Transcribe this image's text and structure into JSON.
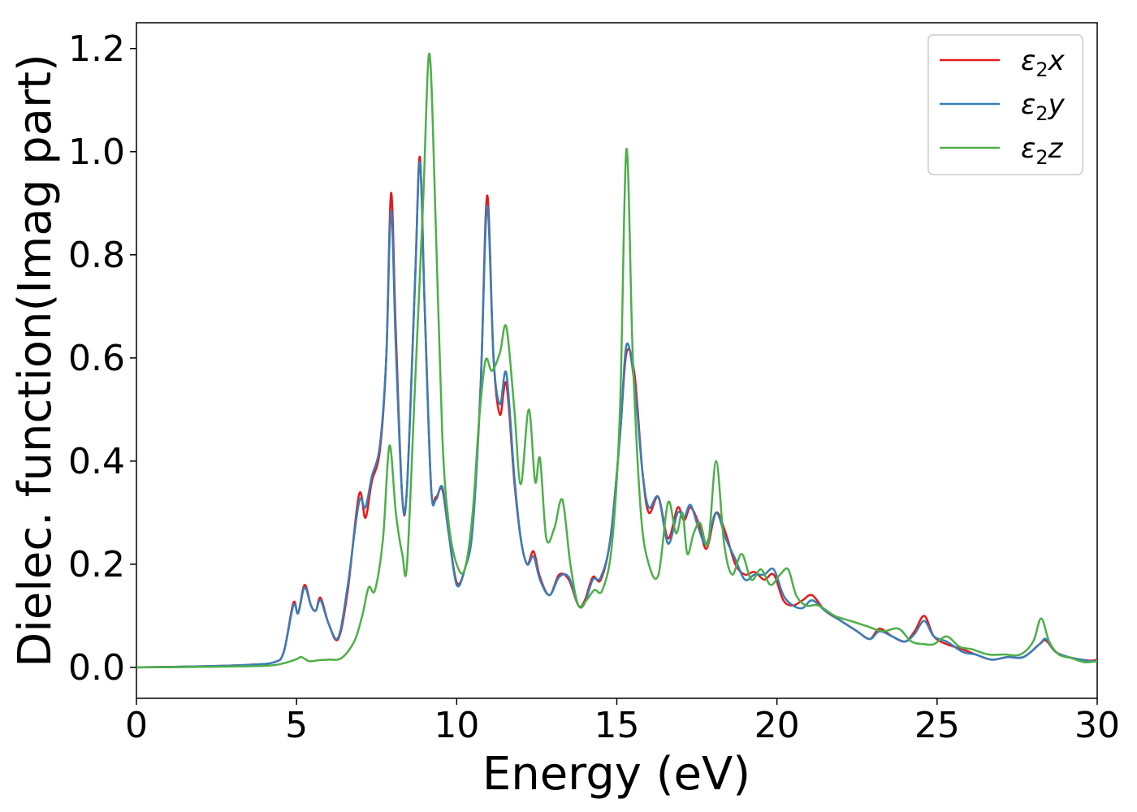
{
  "chart_data": {
    "type": "line",
    "title": "",
    "xlabel": "Energy (eV)",
    "ylabel": "Dielec. function(Imag part)",
    "xlim": [
      0,
      30
    ],
    "ylim": [
      -0.06,
      1.25
    ],
    "xticks": [
      0,
      5,
      10,
      15,
      20,
      25,
      30
    ],
    "xtick_labels": [
      "0",
      "5",
      "10",
      "15",
      "20",
      "25",
      "30"
    ],
    "yticks": [
      0.0,
      0.2,
      0.4,
      0.6,
      0.8,
      1.0,
      1.2
    ],
    "ytick_labels": [
      "0.0",
      "0.2",
      "0.4",
      "0.6",
      "0.8",
      "1.0",
      "1.2"
    ],
    "grid": false,
    "legend_position": "top-right",
    "series": [
      {
        "name": "ε2x",
        "legend_main": "ε",
        "legend_sub": "2",
        "legend_tail": "x",
        "color": "#e41a1c",
        "points": [
          [
            0,
            0
          ],
          [
            2,
            0.002
          ],
          [
            3.5,
            0.005
          ],
          [
            4.3,
            0.01
          ],
          [
            4.6,
            0.03
          ],
          [
            4.9,
            0.125
          ],
          [
            5.05,
            0.105
          ],
          [
            5.25,
            0.16
          ],
          [
            5.45,
            0.12
          ],
          [
            5.6,
            0.11
          ],
          [
            5.75,
            0.135
          ],
          [
            6.0,
            0.085
          ],
          [
            6.3,
            0.055
          ],
          [
            6.6,
            0.15
          ],
          [
            6.95,
            0.335
          ],
          [
            7.15,
            0.29
          ],
          [
            7.35,
            0.36
          ],
          [
            7.6,
            0.42
          ],
          [
            7.8,
            0.6
          ],
          [
            7.95,
            0.92
          ],
          [
            8.1,
            0.65
          ],
          [
            8.3,
            0.33
          ],
          [
            8.45,
            0.35
          ],
          [
            8.7,
            0.75
          ],
          [
            8.85,
            0.99
          ],
          [
            9.0,
            0.7
          ],
          [
            9.2,
            0.35
          ],
          [
            9.35,
            0.33
          ],
          [
            9.55,
            0.345
          ],
          [
            9.75,
            0.26
          ],
          [
            10.0,
            0.165
          ],
          [
            10.25,
            0.19
          ],
          [
            10.5,
            0.28
          ],
          [
            10.75,
            0.55
          ],
          [
            10.95,
            0.915
          ],
          [
            11.15,
            0.6
          ],
          [
            11.35,
            0.49
          ],
          [
            11.55,
            0.55
          ],
          [
            11.8,
            0.36
          ],
          [
            12.0,
            0.25
          ],
          [
            12.2,
            0.2
          ],
          [
            12.4,
            0.225
          ],
          [
            12.6,
            0.175
          ],
          [
            12.9,
            0.14
          ],
          [
            13.2,
            0.18
          ],
          [
            13.5,
            0.17
          ],
          [
            13.8,
            0.12
          ],
          [
            14.0,
            0.13
          ],
          [
            14.25,
            0.175
          ],
          [
            14.5,
            0.17
          ],
          [
            14.8,
            0.25
          ],
          [
            15.1,
            0.45
          ],
          [
            15.3,
            0.61
          ],
          [
            15.55,
            0.57
          ],
          [
            15.8,
            0.38
          ],
          [
            16.0,
            0.3
          ],
          [
            16.3,
            0.33
          ],
          [
            16.6,
            0.25
          ],
          [
            16.9,
            0.31
          ],
          [
            17.1,
            0.285
          ],
          [
            17.3,
            0.31
          ],
          [
            17.55,
            0.28
          ],
          [
            17.8,
            0.23
          ],
          [
            18.1,
            0.3
          ],
          [
            18.4,
            0.26
          ],
          [
            18.7,
            0.2
          ],
          [
            19.0,
            0.18
          ],
          [
            19.3,
            0.185
          ],
          [
            19.6,
            0.17
          ],
          [
            19.9,
            0.18
          ],
          [
            20.2,
            0.13
          ],
          [
            20.5,
            0.12
          ],
          [
            20.8,
            0.13
          ],
          [
            21.1,
            0.14
          ],
          [
            21.5,
            0.11
          ],
          [
            22.0,
            0.09
          ],
          [
            22.5,
            0.07
          ],
          [
            22.9,
            0.055
          ],
          [
            23.2,
            0.075
          ],
          [
            23.6,
            0.06
          ],
          [
            24.0,
            0.05
          ],
          [
            24.3,
            0.07
          ],
          [
            24.6,
            0.1
          ],
          [
            24.9,
            0.06
          ],
          [
            25.3,
            0.045
          ],
          [
            25.8,
            0.035
          ],
          [
            26.2,
            0.025
          ],
          [
            26.7,
            0.015
          ],
          [
            27.2,
            0.02
          ],
          [
            27.7,
            0.02
          ],
          [
            28.2,
            0.045
          ],
          [
            28.4,
            0.052
          ],
          [
            28.7,
            0.03
          ],
          [
            29.1,
            0.02
          ],
          [
            29.5,
            0.015
          ],
          [
            29.8,
            0.013
          ],
          [
            30,
            0.015
          ]
        ]
      },
      {
        "name": "ε2y",
        "legend_main": "ε",
        "legend_sub": "2",
        "legend_tail": "y",
        "color": "#377eb8",
        "points": [
          [
            0,
            0
          ],
          [
            2,
            0.002
          ],
          [
            3.5,
            0.005
          ],
          [
            4.3,
            0.01
          ],
          [
            4.6,
            0.03
          ],
          [
            4.9,
            0.12
          ],
          [
            5.05,
            0.105
          ],
          [
            5.25,
            0.155
          ],
          [
            5.45,
            0.12
          ],
          [
            5.6,
            0.11
          ],
          [
            5.75,
            0.13
          ],
          [
            6.0,
            0.085
          ],
          [
            6.3,
            0.058
          ],
          [
            6.6,
            0.16
          ],
          [
            6.95,
            0.32
          ],
          [
            7.15,
            0.31
          ],
          [
            7.35,
            0.37
          ],
          [
            7.6,
            0.43
          ],
          [
            7.8,
            0.6
          ],
          [
            7.95,
            0.885
          ],
          [
            8.1,
            0.62
          ],
          [
            8.3,
            0.33
          ],
          [
            8.45,
            0.35
          ],
          [
            8.7,
            0.75
          ],
          [
            8.85,
            0.98
          ],
          [
            9.0,
            0.7
          ],
          [
            9.2,
            0.35
          ],
          [
            9.35,
            0.325
          ],
          [
            9.55,
            0.35
          ],
          [
            9.75,
            0.26
          ],
          [
            10.0,
            0.16
          ],
          [
            10.25,
            0.19
          ],
          [
            10.5,
            0.27
          ],
          [
            10.75,
            0.55
          ],
          [
            10.95,
            0.895
          ],
          [
            11.15,
            0.6
          ],
          [
            11.35,
            0.51
          ],
          [
            11.55,
            0.57
          ],
          [
            11.8,
            0.37
          ],
          [
            12.0,
            0.25
          ],
          [
            12.2,
            0.2
          ],
          [
            12.4,
            0.215
          ],
          [
            12.6,
            0.17
          ],
          [
            12.9,
            0.14
          ],
          [
            13.2,
            0.175
          ],
          [
            13.5,
            0.175
          ],
          [
            13.8,
            0.12
          ],
          [
            14.0,
            0.125
          ],
          [
            14.25,
            0.17
          ],
          [
            14.5,
            0.175
          ],
          [
            14.8,
            0.25
          ],
          [
            15.1,
            0.45
          ],
          [
            15.3,
            0.625
          ],
          [
            15.55,
            0.55
          ],
          [
            15.8,
            0.38
          ],
          [
            16.0,
            0.31
          ],
          [
            16.3,
            0.33
          ],
          [
            16.6,
            0.24
          ],
          [
            16.9,
            0.3
          ],
          [
            17.1,
            0.29
          ],
          [
            17.3,
            0.315
          ],
          [
            17.55,
            0.27
          ],
          [
            17.8,
            0.24
          ],
          [
            18.1,
            0.3
          ],
          [
            18.4,
            0.25
          ],
          [
            18.7,
            0.21
          ],
          [
            19.0,
            0.17
          ],
          [
            19.3,
            0.18
          ],
          [
            19.6,
            0.18
          ],
          [
            19.9,
            0.19
          ],
          [
            20.2,
            0.14
          ],
          [
            20.5,
            0.12
          ],
          [
            20.8,
            0.115
          ],
          [
            21.1,
            0.13
          ],
          [
            21.5,
            0.11
          ],
          [
            22.0,
            0.09
          ],
          [
            22.5,
            0.07
          ],
          [
            22.9,
            0.055
          ],
          [
            23.2,
            0.07
          ],
          [
            23.6,
            0.06
          ],
          [
            24.0,
            0.05
          ],
          [
            24.3,
            0.065
          ],
          [
            24.6,
            0.09
          ],
          [
            24.9,
            0.06
          ],
          [
            25.3,
            0.05
          ],
          [
            25.8,
            0.03
          ],
          [
            26.2,
            0.025
          ],
          [
            26.7,
            0.015
          ],
          [
            27.2,
            0.02
          ],
          [
            27.7,
            0.02
          ],
          [
            28.2,
            0.045
          ],
          [
            28.4,
            0.055
          ],
          [
            28.7,
            0.03
          ],
          [
            29.1,
            0.02
          ],
          [
            29.5,
            0.015
          ],
          [
            29.8,
            0.012
          ],
          [
            30,
            0.013
          ]
        ]
      },
      {
        "name": "ε2z",
        "legend_main": "ε",
        "legend_sub": "2",
        "legend_tail": "z",
        "color": "#4daf4a",
        "points": [
          [
            0,
            0
          ],
          [
            2,
            0.001
          ],
          [
            4.0,
            0.003
          ],
          [
            4.6,
            0.008
          ],
          [
            5.0,
            0.016
          ],
          [
            5.15,
            0.02
          ],
          [
            5.4,
            0.012
          ],
          [
            5.7,
            0.014
          ],
          [
            6.0,
            0.015
          ],
          [
            6.4,
            0.018
          ],
          [
            6.8,
            0.05
          ],
          [
            7.05,
            0.1
          ],
          [
            7.25,
            0.155
          ],
          [
            7.45,
            0.15
          ],
          [
            7.7,
            0.25
          ],
          [
            7.9,
            0.43
          ],
          [
            8.1,
            0.3
          ],
          [
            8.3,
            0.22
          ],
          [
            8.45,
            0.2
          ],
          [
            8.7,
            0.55
          ],
          [
            8.95,
            0.9
          ],
          [
            9.15,
            1.19
          ],
          [
            9.35,
            0.85
          ],
          [
            9.55,
            0.45
          ],
          [
            9.75,
            0.28
          ],
          [
            10.0,
            0.2
          ],
          [
            10.25,
            0.19
          ],
          [
            10.5,
            0.3
          ],
          [
            10.7,
            0.48
          ],
          [
            10.9,
            0.595
          ],
          [
            11.1,
            0.575
          ],
          [
            11.35,
            0.61
          ],
          [
            11.55,
            0.66
          ],
          [
            11.8,
            0.5
          ],
          [
            12.0,
            0.355
          ],
          [
            12.25,
            0.5
          ],
          [
            12.45,
            0.36
          ],
          [
            12.6,
            0.405
          ],
          [
            12.8,
            0.25
          ],
          [
            13.05,
            0.27
          ],
          [
            13.3,
            0.325
          ],
          [
            13.55,
            0.2
          ],
          [
            13.8,
            0.12
          ],
          [
            14.05,
            0.13
          ],
          [
            14.3,
            0.15
          ],
          [
            14.55,
            0.15
          ],
          [
            14.85,
            0.24
          ],
          [
            15.1,
            0.5
          ],
          [
            15.3,
            1.005
          ],
          [
            15.5,
            0.6
          ],
          [
            15.75,
            0.3
          ],
          [
            16.0,
            0.2
          ],
          [
            16.3,
            0.18
          ],
          [
            16.6,
            0.32
          ],
          [
            16.85,
            0.26
          ],
          [
            17.05,
            0.3
          ],
          [
            17.2,
            0.22
          ],
          [
            17.4,
            0.26
          ],
          [
            17.6,
            0.28
          ],
          [
            17.85,
            0.24
          ],
          [
            18.1,
            0.4
          ],
          [
            18.35,
            0.24
          ],
          [
            18.6,
            0.18
          ],
          [
            18.9,
            0.22
          ],
          [
            19.2,
            0.17
          ],
          [
            19.5,
            0.19
          ],
          [
            19.8,
            0.16
          ],
          [
            20.1,
            0.18
          ],
          [
            20.35,
            0.19
          ],
          [
            20.6,
            0.14
          ],
          [
            20.9,
            0.12
          ],
          [
            21.3,
            0.12
          ],
          [
            21.8,
            0.1
          ],
          [
            22.3,
            0.09
          ],
          [
            22.8,
            0.08
          ],
          [
            23.3,
            0.07
          ],
          [
            23.8,
            0.075
          ],
          [
            24.2,
            0.05
          ],
          [
            24.6,
            0.045
          ],
          [
            24.9,
            0.045
          ],
          [
            25.3,
            0.06
          ],
          [
            25.7,
            0.04
          ],
          [
            26.1,
            0.035
          ],
          [
            26.6,
            0.025
          ],
          [
            27.1,
            0.025
          ],
          [
            27.6,
            0.025
          ],
          [
            28.0,
            0.05
          ],
          [
            28.25,
            0.095
          ],
          [
            28.5,
            0.05
          ],
          [
            28.8,
            0.025
          ],
          [
            29.2,
            0.018
          ],
          [
            29.6,
            0.01
          ],
          [
            30,
            0.012
          ]
        ]
      }
    ]
  }
}
